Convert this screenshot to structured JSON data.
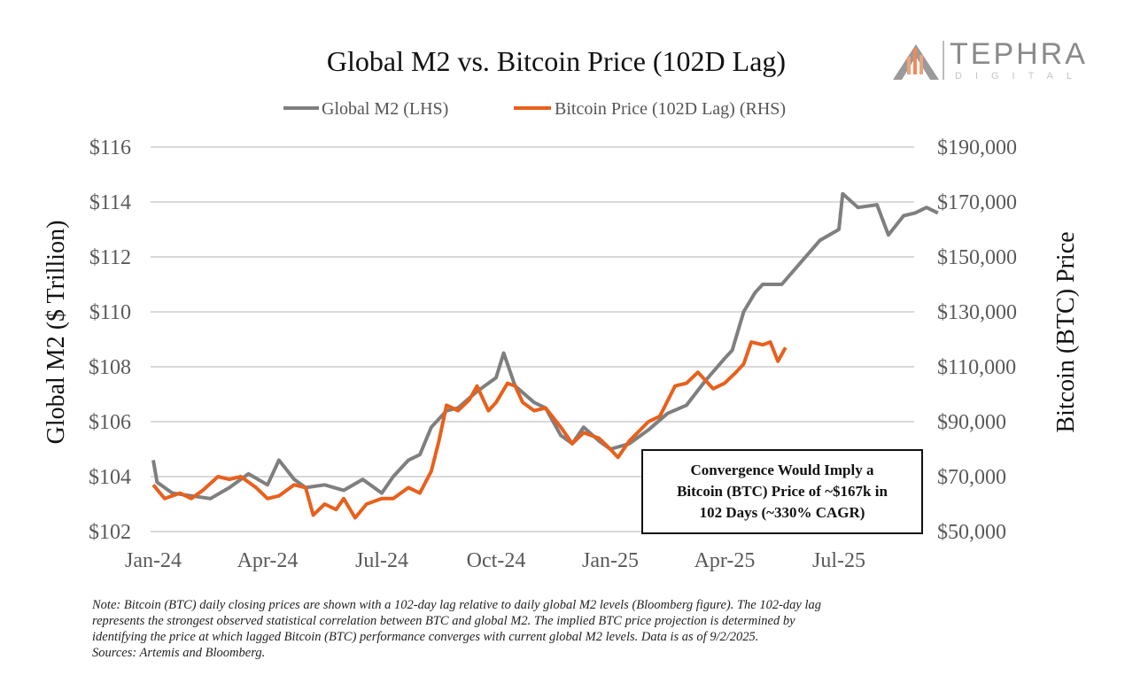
{
  "chart_data": {
    "type": "line",
    "title": "Global M2 vs. Bitcoin Price (102D Lag)",
    "ylabel": "Global M2 ($ Trillion)",
    "y2label": "Bitcoin (BTC) Price",
    "ylim": [
      102,
      116
    ],
    "y2lim": [
      50000,
      190000
    ],
    "yticks": [
      "$102",
      "$104",
      "$106",
      "$108",
      "$110",
      "$112",
      "$114",
      "$116"
    ],
    "y2ticks": [
      "$50,000",
      "$70,000",
      "$90,000",
      "$110,000",
      "$130,000",
      "$150,000",
      "$170,000",
      "$190,000"
    ],
    "xticks": [
      "Jan-24",
      "Apr-24",
      "Jul-24",
      "Oct-24",
      "Jan-25",
      "Apr-25",
      "Jul-25"
    ],
    "x_unit": "months since Jan-24",
    "grid": true,
    "legend_position": "top-center",
    "series": [
      {
        "name": "Global M2 (LHS)",
        "axis": "left",
        "color": "#7f7f7f",
        "x": [
          0,
          0.1,
          0.5,
          1,
          1.5,
          2,
          2.5,
          3,
          3.3,
          3.7,
          4,
          4.5,
          5,
          5.5,
          6,
          6.3,
          6.7,
          7,
          7.3,
          7.7,
          8,
          8.5,
          9,
          9.2,
          9.5,
          10,
          10.3,
          10.7,
          11,
          11.3,
          11.7,
          12,
          12.5,
          13,
          13.5,
          14,
          14.5,
          15,
          15.2,
          15.5,
          15.8,
          16,
          16.5,
          17,
          17.5,
          18,
          18.1,
          18.5,
          19,
          19.3,
          19.7,
          20,
          20.3,
          20.6
        ],
        "y": [
          104.6,
          103.8,
          103.4,
          103.3,
          103.2,
          103.6,
          104.1,
          103.7,
          104.6,
          103.9,
          103.6,
          103.7,
          103.5,
          103.9,
          103.4,
          104.0,
          104.6,
          104.8,
          105.8,
          106.4,
          106.5,
          107.1,
          107.6,
          108.5,
          107.3,
          106.7,
          106.5,
          105.5,
          105.2,
          105.8,
          105.3,
          105.0,
          105.2,
          105.7,
          106.3,
          106.6,
          107.5,
          108.3,
          108.6,
          110.0,
          110.7,
          111.0,
          111.0,
          111.8,
          112.6,
          113.0,
          114.3,
          113.8,
          113.9,
          112.8,
          113.5,
          113.6,
          113.8,
          113.6
        ]
      },
      {
        "name": "Bitcoin Price (102D Lag) (RHS)",
        "axis": "right",
        "color": "#e8601c",
        "x": [
          0,
          0.3,
          0.7,
          1,
          1.3,
          1.7,
          2,
          2.3,
          2.7,
          3,
          3.3,
          3.7,
          4,
          4.2,
          4.5,
          4.8,
          5,
          5.3,
          5.6,
          6,
          6.3,
          6.7,
          7,
          7.3,
          7.5,
          7.7,
          8,
          8.3,
          8.5,
          8.8,
          9,
          9.3,
          9.5,
          9.7,
          10,
          10.3,
          10.7,
          11,
          11.3,
          11.7,
          12,
          12.2,
          12.5,
          13,
          13.3,
          13.7,
          14,
          14.3,
          14.7,
          15,
          15.3,
          15.5,
          15.7,
          16,
          16.2,
          16.4,
          16.6
        ],
        "y": [
          67000,
          62000,
          64000,
          62000,
          65000,
          70000,
          69000,
          70000,
          66000,
          62000,
          63000,
          67000,
          66000,
          56000,
          60000,
          58000,
          62000,
          55000,
          60000,
          62000,
          62000,
          66000,
          64000,
          72000,
          83000,
          96000,
          94000,
          98000,
          103000,
          94000,
          97000,
          104000,
          103000,
          97000,
          94000,
          95000,
          88000,
          82000,
          86000,
          84000,
          80000,
          77000,
          83000,
          90000,
          92000,
          103000,
          104000,
          108000,
          102000,
          104000,
          108000,
          111000,
          119000,
          118000,
          119000,
          112000,
          117000
        ]
      }
    ],
    "annotation": [
      "Convergence Would Imply a",
      "Bitcoin (BTC) Price of ~$167k in",
      "102 Days (~330% CAGR)"
    ]
  },
  "logo": {
    "name": "TEPHRA",
    "sub": "DIGITAL"
  },
  "note": [
    "Note: Bitcoin (BTC) daily closing prices are shown with a 102-day lag relative to daily global M2 levels (Bloomberg figure). The 102-day lag",
    "represents the strongest observed statistical correlation between BTC and global M2. The implied BTC price projection is determined by",
    "identifying the price at which lagged Bitcoin (BTC) performance converges with current global M2 levels. Data is as of 9/2/2025.",
    "Sources: Artemis and Bloomberg."
  ]
}
